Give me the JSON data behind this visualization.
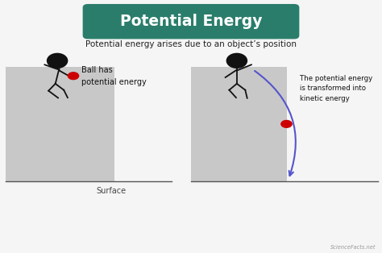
{
  "bg_color": "#f5f5f5",
  "title_text": "Potential Energy",
  "title_bg": "#2a7d6b",
  "title_color": "#ffffff",
  "subtitle": "Potential energy arises due to an object’s position",
  "subtitle_color": "#222222",
  "platform_color": "#c8c8c8",
  "ground_color": "#555555",
  "ball_color": "#cc0000",
  "stick_color": "#111111",
  "arrow_color": "#5555cc",
  "label1_line1": "Ball has",
  "label1_line2": "potential energy",
  "label2": "The potential energy\nis transformed into\nkinetic energy",
  "surface_label": "Surface",
  "watermark": "ScienceFacts.net",
  "xlim": [
    0,
    10
  ],
  "ylim": [
    0,
    10
  ]
}
